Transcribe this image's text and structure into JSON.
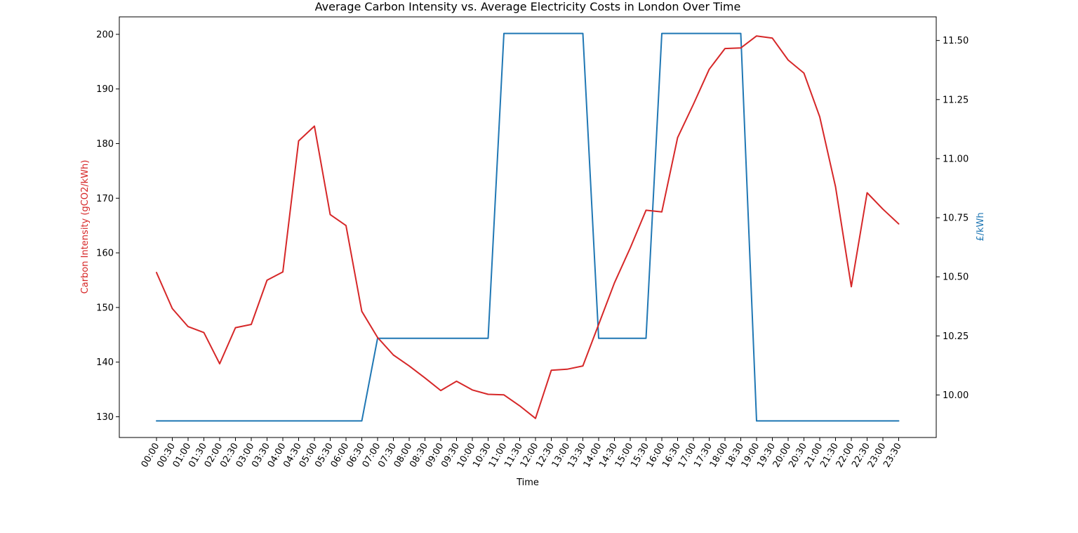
{
  "chart_data": {
    "type": "line",
    "title": "Average Carbon Intensity vs. Average Electricity Costs in London Over Time",
    "xlabel": "Time",
    "ylabel_left": "Carbon Intensity (gCO2/kWh)",
    "ylabel_right": "£/kWh",
    "colors": {
      "carbon": "#d62728",
      "cost": "#1f77b4"
    },
    "grid": false,
    "legend": "none",
    "categories": [
      "00:00",
      "00:30",
      "01:00",
      "01:30",
      "02:00",
      "02:30",
      "03:00",
      "03:30",
      "04:00",
      "04:30",
      "05:00",
      "05:30",
      "06:00",
      "06:30",
      "07:00",
      "07:30",
      "08:00",
      "08:30",
      "09:00",
      "09:30",
      "10:00",
      "10:30",
      "11:00",
      "11:30",
      "12:00",
      "12:30",
      "13:00",
      "13:30",
      "14:00",
      "14:30",
      "15:00",
      "15:30",
      "16:00",
      "16:30",
      "17:00",
      "17:30",
      "18:00",
      "18:30",
      "19:00",
      "19:30",
      "20:00",
      "20:30",
      "21:00",
      "21:30",
      "22:00",
      "22:30",
      "23:00",
      "23:30"
    ],
    "left_axis": {
      "ylim": [
        126.2,
        203.2
      ],
      "ticks": [
        130,
        140,
        150,
        160,
        170,
        180,
        190,
        200
      ]
    },
    "right_axis": {
      "ylim": [
        9.82,
        11.6
      ],
      "ticks": [
        "10.00",
        "10.25",
        "10.50",
        "10.75",
        "11.00",
        "11.25",
        "11.50"
      ]
    },
    "series": [
      {
        "key": "carbon",
        "axis": "left",
        "values": [
          156.4,
          149.8,
          146.5,
          145.4,
          139.7,
          146.3,
          146.9,
          155.0,
          156.5,
          180.5,
          183.2,
          167.0,
          165.0,
          149.3,
          144.5,
          141.3,
          139.3,
          137.1,
          134.8,
          136.5,
          134.9,
          134.1,
          134.0,
          132.0,
          129.7,
          138.5,
          138.7,
          139.3,
          146.9,
          154.5,
          160.9,
          167.8,
          167.5,
          181.1,
          187.2,
          193.6,
          197.4,
          197.5,
          199.7,
          199.3,
          195.3,
          192.9,
          184.9,
          172.1,
          153.8,
          171.0,
          168.0,
          165.3
        ]
      },
      {
        "key": "cost",
        "axis": "right",
        "values": [
          9.89,
          9.89,
          9.89,
          9.89,
          9.89,
          9.89,
          9.89,
          9.89,
          9.89,
          9.89,
          9.89,
          9.89,
          9.89,
          9.89,
          10.24,
          10.24,
          10.24,
          10.24,
          10.24,
          10.24,
          10.24,
          10.24,
          11.53,
          11.53,
          11.53,
          11.53,
          11.53,
          11.53,
          10.24,
          10.24,
          10.24,
          10.24,
          11.53,
          11.53,
          11.53,
          11.53,
          11.53,
          11.53,
          9.89,
          9.89,
          9.89,
          9.89,
          9.89,
          9.89,
          9.89,
          9.89,
          9.89,
          9.89
        ]
      }
    ]
  }
}
